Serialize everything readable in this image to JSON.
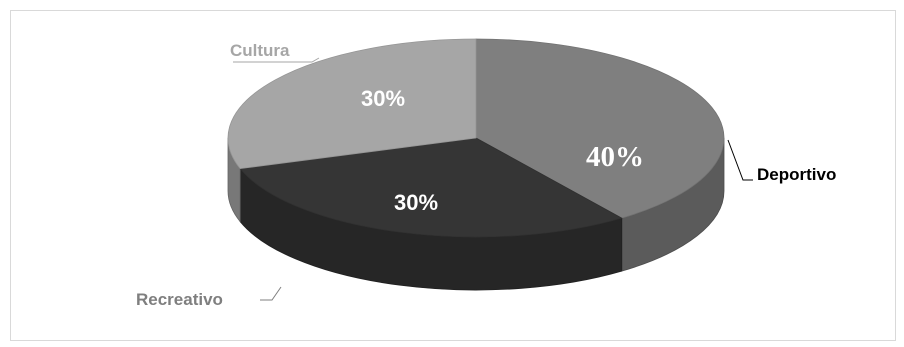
{
  "chart_data": {
    "type": "pie",
    "style": "3d",
    "categories": [
      "Deportivo",
      "Recreativo",
      "Cultura"
    ],
    "values": [
      40,
      30,
      30
    ],
    "data_labels": [
      "40%",
      "30%",
      "30%"
    ],
    "colors": {
      "Deportivo": "#7f7f7f",
      "Recreativo": "#353535",
      "Cultura": "#a6a6a6",
      "label_Deportivo": "#000000",
      "label_Recreativo": "#7f7f7f",
      "label_Cultura": "#a6a6a6"
    }
  }
}
